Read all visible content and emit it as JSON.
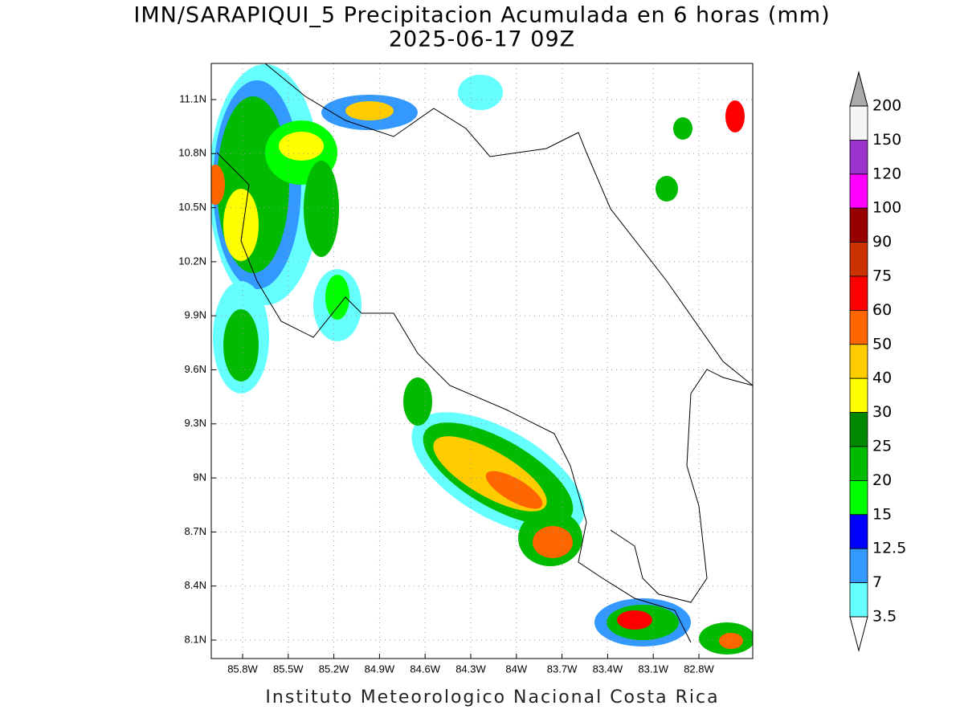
{
  "title": "IMN/SARAPIQUI_5 Precipitacion Acumulada en 6 horas (mm)",
  "subtitle": "2025-06-17 09Z",
  "map": {
    "lat_ticks": [
      "11.1N",
      "10.8N",
      "10.5N",
      "10.2N",
      "9.9N",
      "9.6N",
      "9.3N",
      "9N",
      "8.7N",
      "8.4N",
      "8.1N"
    ],
    "lon_ticks": [
      "85.8W",
      "85.5W",
      "85.2W",
      "84.9W",
      "84.6W",
      "84.3W",
      "84W",
      "83.7W",
      "83.4W",
      "83.1W",
      "82.8W"
    ],
    "grid": true
  },
  "legend": {
    "levels": [
      "200",
      "150",
      "120",
      "100",
      "90",
      "75",
      "60",
      "50",
      "40",
      "30",
      "25",
      "20",
      "15",
      "12.5",
      "7",
      "3.5"
    ],
    "colors": [
      "#f5f5f5",
      "#9933cc",
      "#ff00ff",
      "#990000",
      "#cc3300",
      "#ff0000",
      "#ff6600",
      "#ffcc00",
      "#ffff00",
      "#008800",
      "#00bb00",
      "#00ff00",
      "#0000ff",
      "#3399ff",
      "#66ffff"
    ],
    "over_color": "#aaaaaa",
    "under_color": "#ffffff"
  },
  "footer": "Instituto Meteorologico Nacional Costa Rica"
}
